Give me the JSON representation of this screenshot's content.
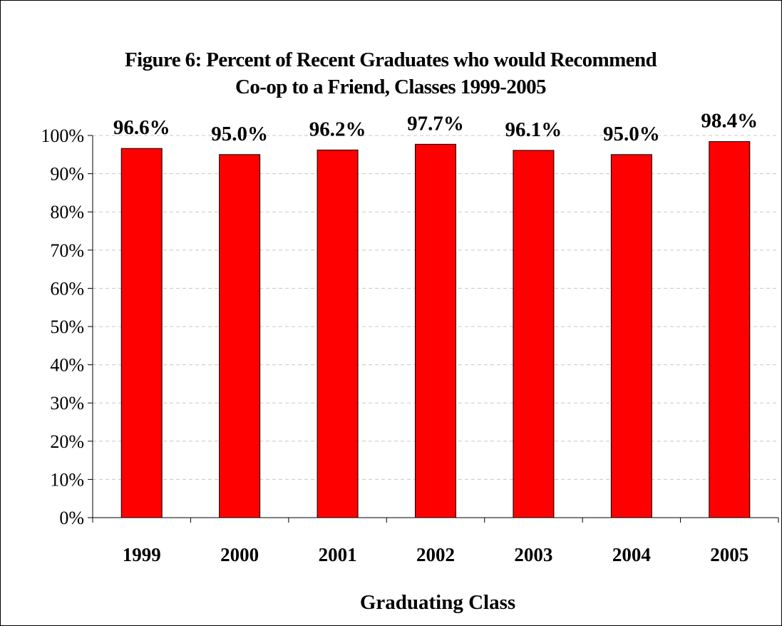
{
  "chart_data": {
    "type": "bar",
    "title_lines": [
      "Figure 6:  Percent of Recent Graduates who would Recommend",
      "Co-op to a Friend, Classes 1999-2005"
    ],
    "xlabel": "Graduating Class",
    "ylabel": "",
    "categories": [
      "1999",
      "2000",
      "2001",
      "2002",
      "2003",
      "2004",
      "2005"
    ],
    "values": [
      96.6,
      95.0,
      96.2,
      97.7,
      96.1,
      95.0,
      98.4
    ],
    "data_labels": [
      "96.6%",
      "95.0%",
      "96.2%",
      "97.7%",
      "96.1%",
      "95.0%",
      "98.4%"
    ],
    "ylim": [
      0,
      100
    ],
    "yticks": [
      0,
      10,
      20,
      30,
      40,
      50,
      60,
      70,
      80,
      90,
      100
    ],
    "ytick_labels": [
      "0%",
      "10%",
      "20%",
      "30%",
      "40%",
      "50%",
      "60%",
      "70%",
      "80%",
      "90%",
      "100%"
    ],
    "grid": "horizontal dashed",
    "legend": "none",
    "colors": {
      "bar_fill": "#ff0000",
      "bar_stroke": "#000000",
      "grid": "#c8c8c8",
      "axis": "#000000",
      "text": "#000000"
    }
  }
}
